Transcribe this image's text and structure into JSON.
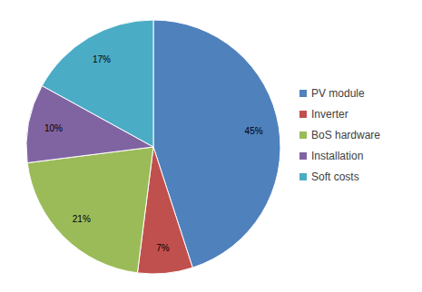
{
  "chart_data": {
    "type": "pie",
    "categories": [
      "PV module",
      "Inverter",
      "BoS hardware",
      "Installation",
      "Soft costs"
    ],
    "values": [
      45,
      7,
      21,
      10,
      17
    ],
    "value_labels": [
      "45%",
      "7%",
      "21%",
      "10%",
      "17%"
    ],
    "colors": [
      "#4f81bd",
      "#c0504d",
      "#9bbb59",
      "#8064a2",
      "#4bacc6"
    ],
    "data_labels": true,
    "legend": "right"
  }
}
